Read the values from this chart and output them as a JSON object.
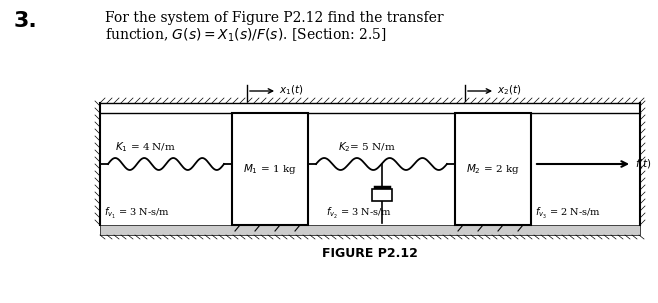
{
  "title": "FIGURE P2.12",
  "problem_number": "3.",
  "text_line1": "For the system of Figure P2.12 find the transfer",
  "text_line2": "function, $G(s) = X_1(s)/F(s)$. [Section: 2.5]",
  "bg_color": "#ffffff",
  "fig_width": 6.58,
  "fig_height": 3.03,
  "K1_label": "$K_1$ = 4 N/m",
  "K2_label": "$K_2$= 5 N/m",
  "fv1_label": "$f_{v_1}$ = 3 N-s/m",
  "M1_label": "$M_1$ = 1 kg",
  "fv2_label": "$f_{v_2}$ = 3 N-s/m",
  "M2_label": "$M_2$ = 2 kg",
  "fv3_label": "$f_{v_3}$ = 2 N-s/m",
  "x1_label": "$x_1(t)$",
  "x2_label": "$x_2(t)$",
  "f_label": "$f(t)$"
}
